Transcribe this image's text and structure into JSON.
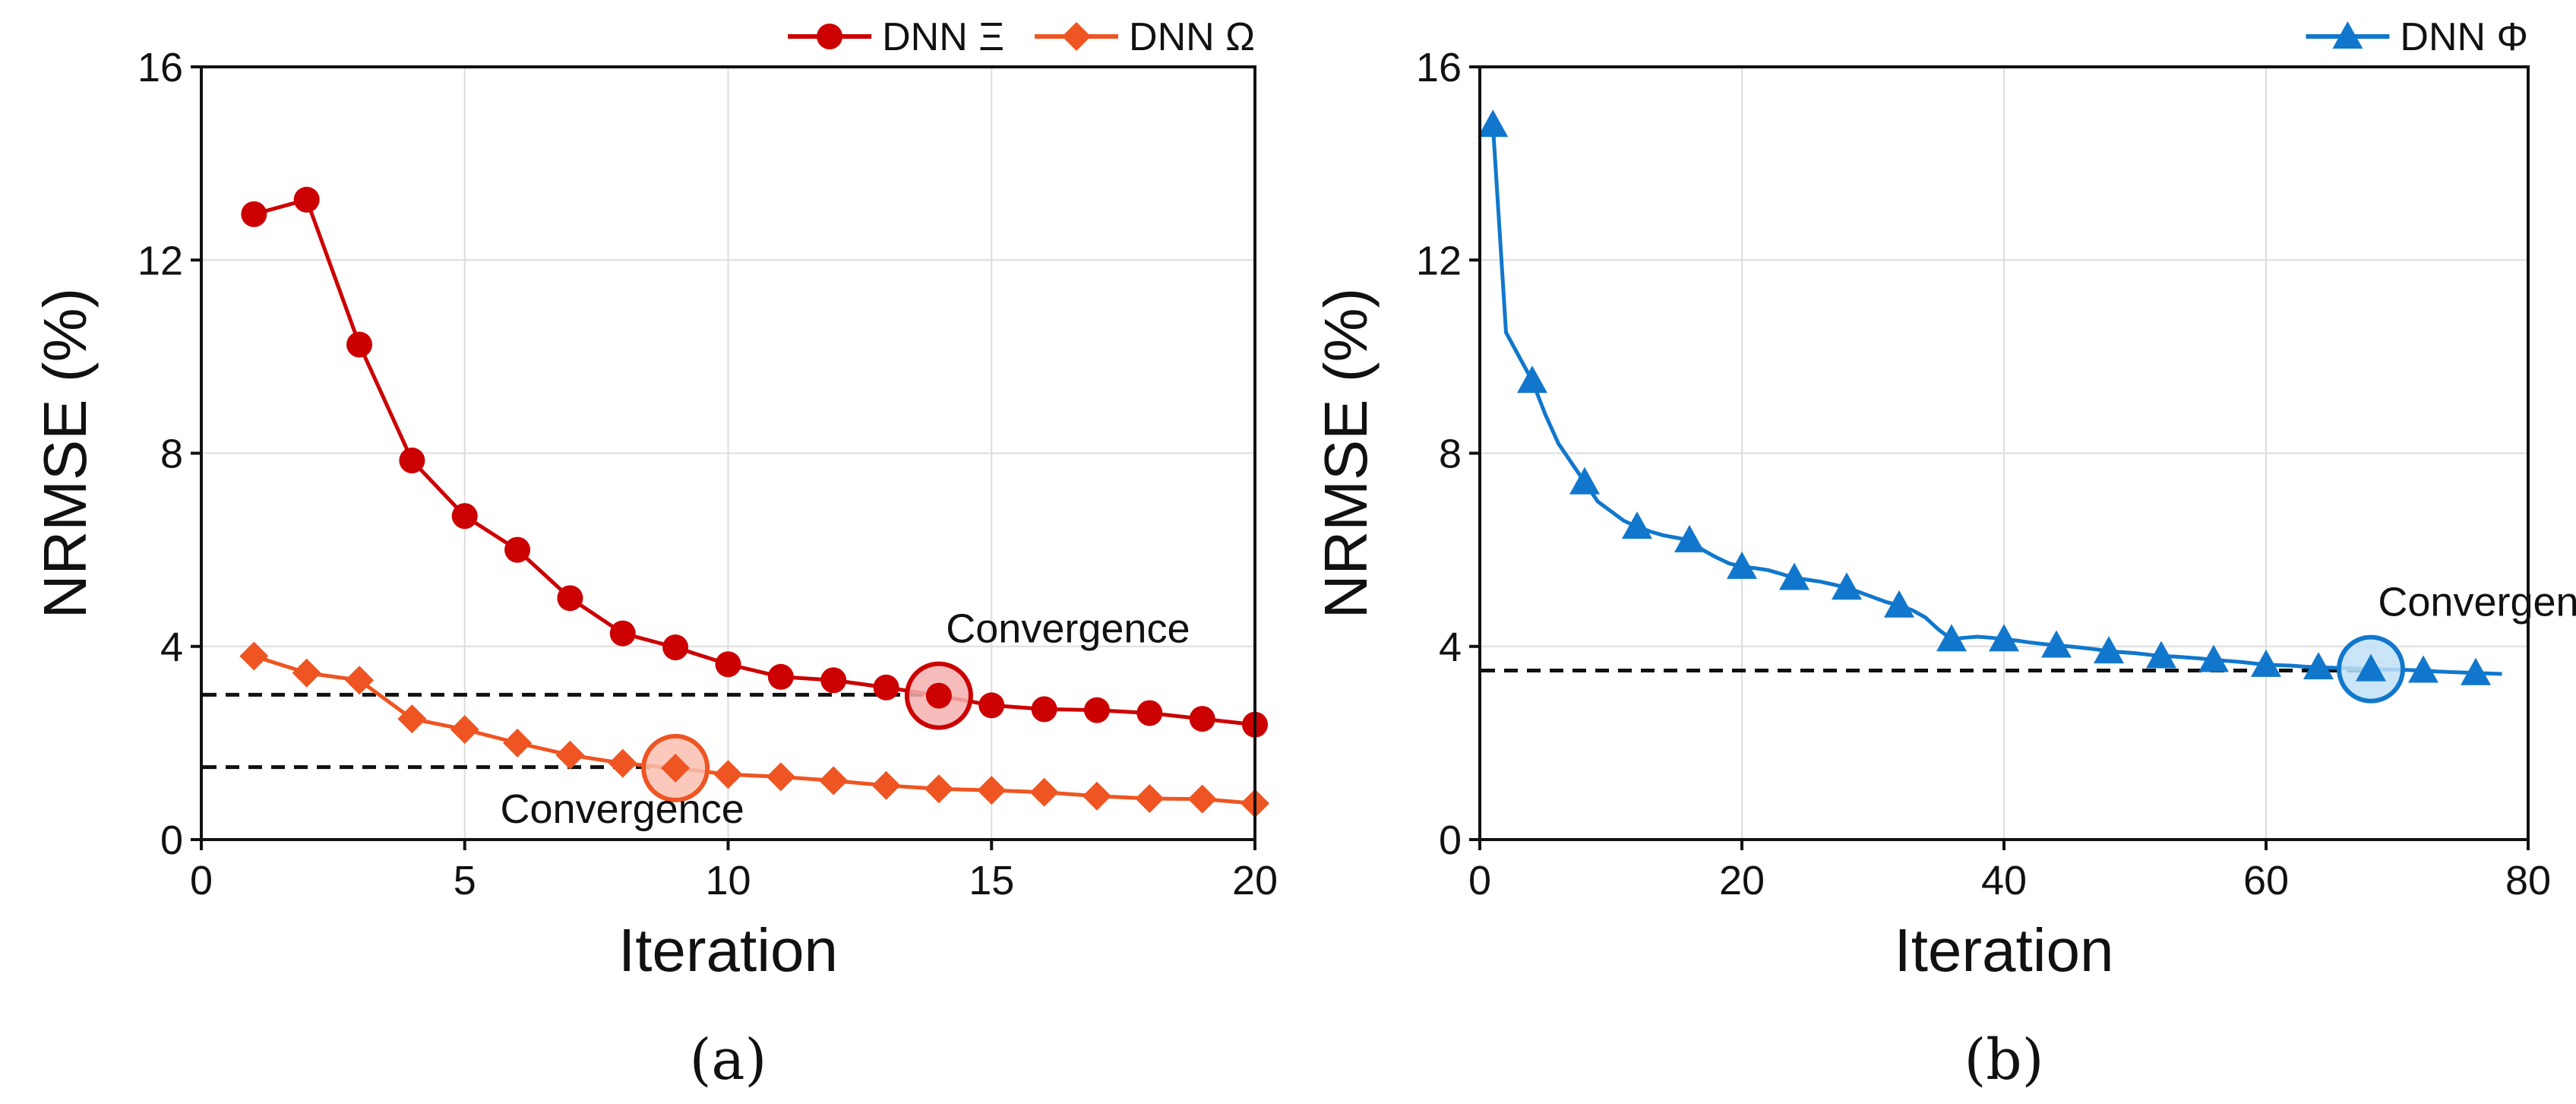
{
  "colors": {
    "red": "#cc0000",
    "orange": "#ee5522",
    "blue": "#1177cc",
    "red_circle_fill": "#f4b0b0",
    "orange_circle_fill": "#f9c0b0",
    "blue_circle_fill": "#bfe0f6"
  },
  "chart_data": [
    {
      "panel": "a",
      "type": "line",
      "caption": "(a)",
      "xlabel": "Iteration",
      "ylabel": "NRMSE (%)",
      "xlim": [
        0,
        20
      ],
      "ylim": [
        0,
        16
      ],
      "xticks": [
        "0",
        "5",
        "10",
        "15",
        "20"
      ],
      "yticks": [
        "0",
        "4",
        "8",
        "12",
        "16"
      ],
      "grid": true,
      "legend_position": "top-right, above plot",
      "series": [
        {
          "name": "DNN Ξ",
          "legend_label": "DNN Ξ",
          "color_key": "red",
          "marker": "circle",
          "x": [
            1,
            2,
            3,
            4,
            5,
            6,
            7,
            8,
            9,
            10,
            11,
            12,
            13,
            14,
            15,
            16,
            17,
            18,
            19,
            20
          ],
          "y": [
            12.95,
            13.25,
            10.25,
            7.85,
            6.7,
            6.0,
            5.0,
            4.27,
            3.98,
            3.63,
            3.37,
            3.3,
            3.15,
            2.98,
            2.78,
            2.7,
            2.68,
            2.62,
            2.5,
            2.38
          ],
          "convergence": {
            "x": 14,
            "y": 2.98,
            "label": "Convergence",
            "dashed_level": 3.0,
            "label_position": "above"
          }
        },
        {
          "name": "DNN Ω",
          "legend_label": "DNN Ω",
          "color_key": "orange",
          "marker": "diamond",
          "x": [
            1,
            2,
            3,
            4,
            5,
            6,
            7,
            8,
            9,
            10,
            11,
            12,
            13,
            14,
            15,
            16,
            17,
            18,
            19,
            20
          ],
          "y": [
            3.8,
            3.45,
            3.3,
            2.5,
            2.28,
            2.0,
            1.75,
            1.58,
            1.48,
            1.35,
            1.3,
            1.22,
            1.12,
            1.05,
            1.02,
            0.98,
            0.9,
            0.85,
            0.84,
            0.75
          ],
          "convergence": {
            "x": 9,
            "y": 1.48,
            "label": "Convergence",
            "dashed_level": 1.5,
            "label_position": "below"
          }
        }
      ]
    },
    {
      "panel": "b",
      "type": "line",
      "caption": "(b)",
      "xlabel": "Iteration",
      "ylabel": "NRMSE (%)",
      "xlim": [
        0,
        80
      ],
      "ylim": [
        0,
        16
      ],
      "xticks": [
        "0",
        "20",
        "40",
        "60",
        "80"
      ],
      "yticks": [
        "0",
        "4",
        "8",
        "12",
        "16"
      ],
      "grid": true,
      "legend_position": "top-right, above plot",
      "series": [
        {
          "name": "DNN Φ",
          "legend_label": "DNN Φ",
          "color_key": "blue",
          "marker": "triangle",
          "x": [
            1,
            2,
            3,
            4,
            5,
            6,
            7,
            8,
            9,
            10,
            11,
            12,
            13,
            14,
            15,
            16,
            17,
            18,
            19,
            20,
            21,
            22,
            23,
            24,
            25,
            26,
            27,
            28,
            29,
            30,
            31,
            32,
            33,
            34,
            35,
            36,
            37,
            38,
            39,
            40,
            41,
            42,
            43,
            44,
            45,
            46,
            47,
            48,
            49,
            50,
            51,
            52,
            53,
            54,
            55,
            56,
            57,
            58,
            59,
            60,
            61,
            62,
            63,
            64,
            65,
            66,
            67,
            68,
            69,
            70,
            71,
            72,
            73,
            74,
            75,
            76,
            77,
            78
          ],
          "y": [
            14.8,
            10.5,
            10.0,
            9.5,
            8.8,
            8.2,
            7.8,
            7.4,
            7.0,
            6.8,
            6.6,
            6.48,
            6.38,
            6.3,
            6.25,
            6.2,
            6.0,
            5.85,
            5.72,
            5.65,
            5.62,
            5.58,
            5.5,
            5.42,
            5.38,
            5.34,
            5.28,
            5.22,
            5.12,
            5.02,
            4.92,
            4.85,
            4.75,
            4.6,
            4.35,
            4.15,
            4.18,
            4.2,
            4.18,
            4.15,
            4.12,
            4.08,
            4.05,
            4.02,
            4.0,
            3.97,
            3.94,
            3.9,
            3.88,
            3.86,
            3.83,
            3.8,
            3.79,
            3.77,
            3.75,
            3.72,
            3.7,
            3.68,
            3.65,
            3.62,
            3.61,
            3.6,
            3.58,
            3.57,
            3.56,
            3.55,
            3.54,
            3.53,
            3.52,
            3.52,
            3.51,
            3.5,
            3.48,
            3.47,
            3.46,
            3.45,
            3.44,
            3.43
          ],
          "marker_x": [
            1,
            4,
            8,
            12,
            16,
            20,
            24,
            28,
            32,
            36,
            40,
            44,
            48,
            52,
            56,
            60,
            64,
            68,
            72,
            76
          ],
          "convergence": {
            "x": 68,
            "y": 3.53,
            "label": "Convergence",
            "dashed_level": 3.5,
            "label_position": "above"
          }
        }
      ]
    }
  ]
}
